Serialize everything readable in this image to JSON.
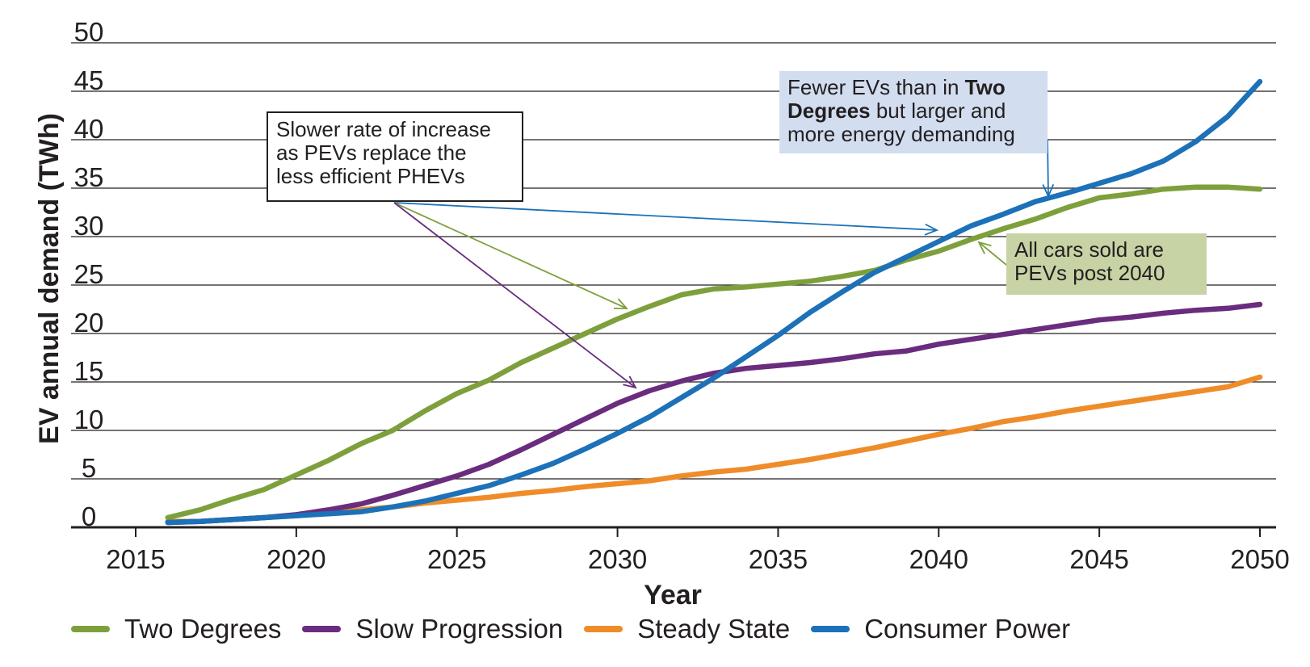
{
  "chart_data": {
    "type": "line",
    "xlabel": "Year",
    "ylabel": "EV annual demand (TWh)",
    "xlim": [
      2015,
      2050
    ],
    "ylim": [
      0,
      50
    ],
    "x_ticks": [
      "2015",
      "2020",
      "2025",
      "2030",
      "2035",
      "2040",
      "2045",
      "2050"
    ],
    "y_ticks": [
      "0",
      "5",
      "10",
      "15",
      "20",
      "25",
      "30",
      "35",
      "40",
      "45",
      "50"
    ],
    "grid": "horizontal",
    "legend_position": "bottom",
    "x": [
      2016,
      2017,
      2018,
      2019,
      2020,
      2021,
      2022,
      2023,
      2024,
      2025,
      2026,
      2027,
      2028,
      2029,
      2030,
      2031,
      2032,
      2033,
      2034,
      2035,
      2036,
      2037,
      2038,
      2039,
      2040,
      2041,
      2042,
      2043,
      2044,
      2045,
      2046,
      2047,
      2048,
      2049,
      2050
    ],
    "series": [
      {
        "name": "Two Degrees",
        "color": "#7ea03c",
        "values": [
          1.0,
          1.8,
          2.9,
          3.9,
          5.4,
          6.9,
          8.6,
          10.0,
          12.0,
          13.8,
          15.2,
          17.0,
          18.5,
          20.0,
          21.5,
          22.8,
          24.0,
          24.6,
          24.8,
          25.1,
          25.4,
          25.9,
          26.5,
          27.6,
          28.5,
          29.7,
          30.8,
          31.8,
          33.0,
          34.0,
          34.4,
          34.9,
          35.1,
          35.1,
          34.9
        ],
        "legend_label": "Two Degrees"
      },
      {
        "name": "Slow Progression",
        "color": "#6a2c7e",
        "values": [
          0.5,
          0.6,
          0.8,
          1.0,
          1.3,
          1.8,
          2.4,
          3.3,
          4.3,
          5.3,
          6.5,
          8.0,
          9.6,
          11.2,
          12.8,
          14.1,
          15.1,
          15.9,
          16.4,
          16.7,
          17.0,
          17.4,
          17.9,
          18.2,
          18.9,
          19.4,
          19.9,
          20.4,
          20.9,
          21.4,
          21.7,
          22.1,
          22.4,
          22.6,
          23.0
        ],
        "legend_label": "Slow Progression"
      },
      {
        "name": "Steady State",
        "color": "#ef8c2a",
        "values": [
          0.6,
          0.6,
          0.8,
          1.0,
          1.2,
          1.5,
          1.8,
          2.1,
          2.5,
          2.8,
          3.1,
          3.5,
          3.8,
          4.2,
          4.5,
          4.8,
          5.3,
          5.7,
          6.0,
          6.5,
          7.0,
          7.6,
          8.2,
          8.9,
          9.6,
          10.2,
          10.9,
          11.4,
          12.0,
          12.5,
          13.0,
          13.5,
          14.0,
          14.5,
          15.5
        ],
        "legend_label": "Steady State"
      },
      {
        "name": "Consumer Power",
        "color": "#1c71b8",
        "values": [
          0.5,
          0.6,
          0.8,
          1.0,
          1.2,
          1.4,
          1.6,
          2.1,
          2.7,
          3.5,
          4.3,
          5.4,
          6.6,
          8.1,
          9.7,
          11.4,
          13.4,
          15.4,
          17.6,
          19.8,
          22.2,
          24.3,
          26.3,
          27.9,
          29.5,
          31.1,
          32.3,
          33.6,
          34.5,
          35.5,
          36.5,
          37.8,
          39.8,
          42.4,
          46.0
        ],
        "legend_label": "Consumer Power"
      }
    ],
    "annotations": {
      "left": {
        "lines": [
          "Slower rate of increase",
          "as PEVs replace the",
          "less efficient PHEVs"
        ]
      },
      "top": {
        "line1_pre": "Fewer EVs than in ",
        "line1_bold": "Two",
        "line2_bold": "Degrees",
        "line2_post": " but larger and",
        "line3": "more energy demanding"
      },
      "right": {
        "lines": [
          "All cars sold are",
          "PEVs post 2040"
        ]
      }
    }
  }
}
